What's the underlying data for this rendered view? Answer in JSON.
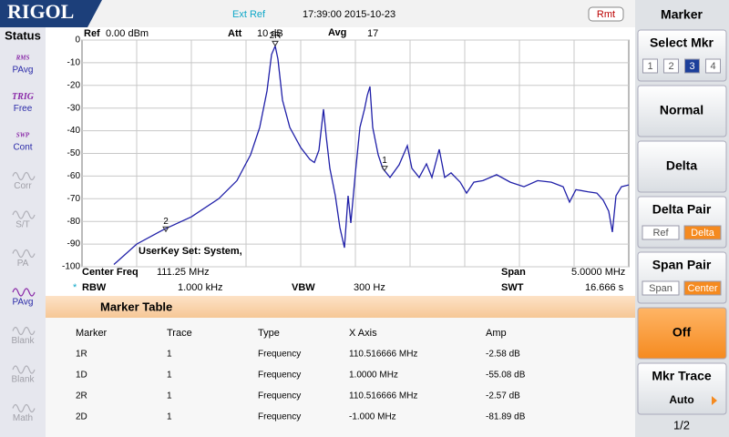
{
  "header": {
    "logo": "RIGOL",
    "ext_ref": "Ext Ref",
    "datetime": "17:39:00 2015-10-23",
    "remote": "Rmt"
  },
  "status": {
    "title": "Status",
    "items": [
      {
        "top": "RMS",
        "label": "PAvg",
        "active": true
      },
      {
        "top": "TRIG",
        "label": "Free",
        "active": true
      },
      {
        "top": "SWP",
        "label": "Cont",
        "active": true
      },
      {
        "label": "Corr",
        "active": false
      },
      {
        "label": "S/T",
        "active": false
      },
      {
        "label": "PA",
        "active": false
      },
      {
        "label": "PAvg",
        "active": true
      },
      {
        "label": "Blank",
        "active": false
      },
      {
        "label": "Blank",
        "active": false
      },
      {
        "label": "Math",
        "active": false
      }
    ]
  },
  "settings": {
    "ref_label": "Ref",
    "ref": "0.00 dBm",
    "att_label": "Att",
    "att": "10 dB",
    "avg_label": "Avg",
    "avg": "17",
    "center_label": "Center Freq",
    "center": "111.25 MHz",
    "span_label": "Span",
    "span": "5.0000 MHz",
    "rbw_flag": "*",
    "rbw_label": "RBW",
    "rbw": "1.000 kHz",
    "vbw_label": "VBW",
    "vbw": "300 Hz",
    "swt_label": "SWT",
    "swt": "16.666 s"
  },
  "chart_data": {
    "type": "line",
    "xlim": [
      108.75,
      113.75
    ],
    "ylim": [
      -100,
      0
    ],
    "yticks": [
      0,
      -10,
      -20,
      -30,
      -40,
      -50,
      -60,
      -70,
      -80,
      -90,
      -100
    ],
    "grid": true,
    "x": [
      109.042,
      109.25,
      109.5,
      109.75,
      110.0,
      110.167,
      110.292,
      110.375,
      110.442,
      110.483,
      110.517,
      110.542,
      110.583,
      110.65,
      110.75,
      110.833,
      110.875,
      110.917,
      110.958,
      110.983,
      111.017,
      111.067,
      111.108,
      111.15,
      111.183,
      111.208,
      111.25,
      111.292,
      111.333,
      111.358,
      111.383,
      111.408,
      111.458,
      111.5,
      111.567,
      111.65,
      111.725,
      111.767,
      111.833,
      111.9,
      111.95,
      112.017,
      112.067,
      112.125,
      112.208,
      112.267,
      112.333,
      112.417,
      112.542,
      112.667,
      112.792,
      112.917,
      113.042,
      113.15,
      113.208,
      113.267,
      113.375,
      113.458,
      113.517,
      113.567,
      113.6,
      113.633,
      113.683,
      113.75
    ],
    "series": [
      {
        "color": "#1f1fa8",
        "values": [
          -99,
          -90,
          -83.5,
          -78,
          -70,
          -62,
          -50.6,
          -38.5,
          -22.5,
          -6.4,
          -2.6,
          -8.4,
          -26.5,
          -38.5,
          -47.4,
          -52.6,
          -54,
          -48.6,
          -30.5,
          -42.6,
          -56.6,
          -68.7,
          -82.7,
          -91.6,
          -68.7,
          -80.7,
          -58.6,
          -38.5,
          -30.5,
          -24.5,
          -20.5,
          -38.5,
          -50.6,
          -56.6,
          -60.6,
          -55,
          -46.6,
          -56.6,
          -60.6,
          -54.6,
          -60.6,
          -48.2,
          -60.6,
          -58.6,
          -62.7,
          -67.5,
          -62.7,
          -62,
          -59.4,
          -62.7,
          -64.7,
          -62,
          -62.7,
          -64.7,
          -71.5,
          -66,
          -66.9,
          -67.5,
          -70.7,
          -75.5,
          -84.7,
          -68.7,
          -64.7,
          -63.9
        ]
      }
    ],
    "markers": [
      {
        "label": "2R",
        "x": 110.516666,
        "y": -2.57
      },
      {
        "label": "1",
        "x": 111.516666,
        "y": -57.66
      },
      {
        "label": "2",
        "x": 109.516666,
        "y": -84.46
      }
    ],
    "annotation": "UserKey Set:  System,"
  },
  "marker_table": {
    "title": "Marker Table",
    "columns": [
      "Marker",
      "Trace",
      "Type",
      "X Axis",
      "Amp"
    ],
    "rows": [
      [
        "1R",
        "1",
        "Frequency",
        "110.516666 MHz",
        "-2.58 dB"
      ],
      [
        "1D",
        "1",
        "Frequency",
        "1.0000 MHz",
        "-55.08 dB"
      ],
      [
        "2R",
        "1",
        "Frequency",
        "110.516666 MHz",
        "-2.57 dB"
      ],
      [
        "2D",
        "1",
        "Frequency",
        "-1.000 MHz",
        "-81.89 dB"
      ]
    ]
  },
  "menu": {
    "title": "Marker",
    "buttons": [
      {
        "label": "Select Mkr",
        "options": [
          "1",
          "2",
          "3",
          "4"
        ],
        "selected": 2
      },
      {
        "label": "Normal"
      },
      {
        "label": "Delta"
      },
      {
        "label": "Delta Pair",
        "options": [
          "Ref",
          "Delta"
        ],
        "selected": 1
      },
      {
        "label": "Span Pair",
        "options": [
          "Span",
          "Center"
        ],
        "selected": 1
      },
      {
        "label": "Off",
        "active": true
      },
      {
        "label": "Mkr Trace",
        "value": "Auto"
      }
    ],
    "page": "1/2"
  }
}
